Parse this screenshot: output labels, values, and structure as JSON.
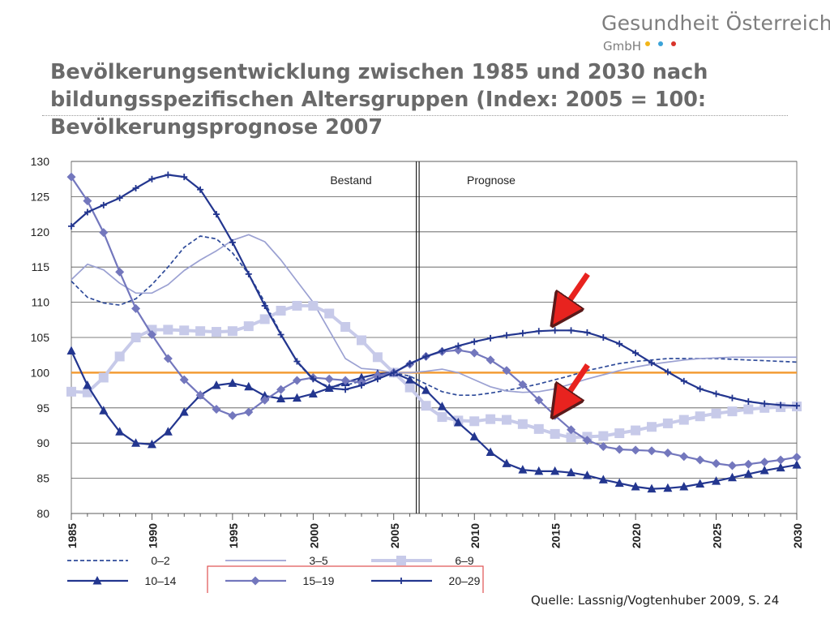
{
  "header": {
    "logo_name": "Gesundheit Österreich",
    "logo_sub": "GmbH",
    "logo_dot_colors": [
      "#f2b519",
      "#3ba3d8",
      "#d8332a"
    ]
  },
  "title": "Bevölkerungsentwicklung zwischen 1985 und 2030 nach bildungsspezifischen Altersgruppen (Index: 2005 = 100: Bevölkerungsprognose 2007",
  "source": "Quelle: Lassnig/Vogtenhuber 2009, S. 24",
  "chart_data": {
    "type": "line",
    "x_label": "",
    "y_label": "",
    "xlim": [
      1985,
      2030
    ],
    "ylim": [
      80,
      130
    ],
    "x_ticks": [
      1985,
      1990,
      1995,
      2000,
      2005,
      2010,
      2015,
      2020,
      2025,
      2030
    ],
    "y_ticks": [
      80,
      85,
      90,
      95,
      100,
      105,
      110,
      115,
      120,
      125,
      130
    ],
    "grid": "horizontal",
    "divider_year": 2006.5,
    "section_labels": [
      "Bestand",
      "Prognose"
    ],
    "reference_line": {
      "value": 100,
      "color": "#f39c34"
    },
    "x": [
      1985,
      1986,
      1987,
      1988,
      1989,
      1990,
      1991,
      1992,
      1993,
      1994,
      1995,
      1996,
      1997,
      1998,
      1999,
      2000,
      2001,
      2002,
      2003,
      2004,
      2005,
      2006,
      2007,
      2008,
      2009,
      2010,
      2011,
      2012,
      2013,
      2014,
      2015,
      2016,
      2017,
      2018,
      2019,
      2020,
      2021,
      2022,
      2023,
      2024,
      2025,
      2026,
      2027,
      2028,
      2029,
      2030
    ],
    "series": [
      {
        "name": "0–2",
        "color": "#2f4b9a",
        "style": "dashed",
        "marker": "none",
        "values": [
          113,
          110.7,
          109.9,
          109.6,
          110.5,
          112.5,
          115,
          117.8,
          119.4,
          119,
          117,
          114,
          110,
          105.5,
          101.5,
          99,
          98,
          98.2,
          98.8,
          99.5,
          100,
          99.5,
          98.4,
          97.3,
          96.8,
          96.8,
          97.1,
          97.5,
          97.9,
          98.4,
          99,
          99.6,
          100.3,
          100.8,
          101.3,
          101.6,
          101.8,
          102,
          102,
          102,
          102,
          101.9,
          101.8,
          101.7,
          101.6,
          101.5
        ]
      },
      {
        "name": "3–5",
        "color": "#9ba1d2",
        "style": "solid",
        "marker": "none",
        "values": [
          113.2,
          115.4,
          114.6,
          112.7,
          111.3,
          111.3,
          112.5,
          114.5,
          116,
          117.3,
          118.8,
          119.6,
          118.6,
          116,
          113,
          110,
          106,
          102,
          100.6,
          100.4,
          100,
          100,
          100.2,
          100.5,
          100,
          99,
          98,
          97.4,
          97.2,
          97.3,
          97.7,
          98.4,
          99.1,
          99.7,
          100.3,
          100.8,
          101.2,
          101.5,
          101.8,
          102,
          102.1,
          102.2,
          102.2,
          102.2,
          102.2,
          102.2
        ]
      },
      {
        "name": "6–9",
        "color": "#c7cae9",
        "style": "solid",
        "marker": "square",
        "values": [
          97.3,
          97.2,
          99.3,
          102.3,
          105,
          106.1,
          106.1,
          106,
          105.9,
          105.8,
          105.9,
          106.6,
          107.6,
          108.8,
          109.5,
          109.5,
          108.4,
          106.5,
          104.6,
          102.2,
          100,
          97.9,
          95.3,
          93.7,
          93.2,
          93.1,
          93.4,
          93.3,
          92.7,
          92,
          91.3,
          90.8,
          90.9,
          91,
          91.4,
          91.8,
          92.3,
          92.8,
          93.3,
          93.8,
          94.2,
          94.5,
          94.8,
          95,
          95.1,
          95.2
        ]
      },
      {
        "name": "10–14",
        "color": "#23368f",
        "style": "solid",
        "marker": "triangle",
        "values": [
          103.1,
          98.2,
          94.6,
          91.6,
          90,
          89.8,
          91.6,
          94.4,
          96.8,
          98.2,
          98.5,
          98,
          96.7,
          96.3,
          96.4,
          97,
          97.8,
          98.6,
          99.3,
          99.8,
          100,
          99,
          97.5,
          95.2,
          92.9,
          90.9,
          88.7,
          87.1,
          86.2,
          86,
          86,
          85.8,
          85.4,
          84.8,
          84.3,
          83.8,
          83.5,
          83.6,
          83.8,
          84.2,
          84.6,
          85.1,
          85.6,
          86.1,
          86.5,
          86.9
        ]
      },
      {
        "name": "15–19",
        "color": "#7377bd",
        "style": "solid",
        "marker": "diamond",
        "values": [
          127.8,
          124.4,
          119.9,
          114.3,
          109.1,
          105.4,
          102,
          99,
          96.8,
          94.8,
          93.9,
          94.4,
          96.1,
          97.6,
          98.9,
          99.3,
          99.1,
          98.9,
          98.6,
          99.6,
          100,
          101.2,
          102.3,
          103,
          103.2,
          102.8,
          101.8,
          100.3,
          98.3,
          96.1,
          93.9,
          91.9,
          90.4,
          89.5,
          89.1,
          89,
          88.9,
          88.6,
          88.1,
          87.6,
          87.1,
          86.8,
          87,
          87.3,
          87.6,
          88
        ]
      },
      {
        "name": "20–29",
        "color": "#23368f",
        "style": "solid",
        "marker": "plus",
        "values": [
          120.8,
          122.8,
          123.8,
          124.8,
          126.2,
          127.5,
          128.1,
          127.8,
          126,
          122.5,
          118.5,
          114,
          109.5,
          105.4,
          101.6,
          99.1,
          97.8,
          97.6,
          98.2,
          99.1,
          100,
          101.3,
          102.3,
          103.1,
          103.8,
          104.4,
          104.9,
          105.3,
          105.6,
          105.9,
          106,
          106,
          105.7,
          105,
          104.1,
          102.8,
          101.4,
          100.1,
          98.8,
          97.7,
          97,
          96.4,
          95.9,
          95.6,
          95.4,
          95.3
        ]
      }
    ]
  }
}
